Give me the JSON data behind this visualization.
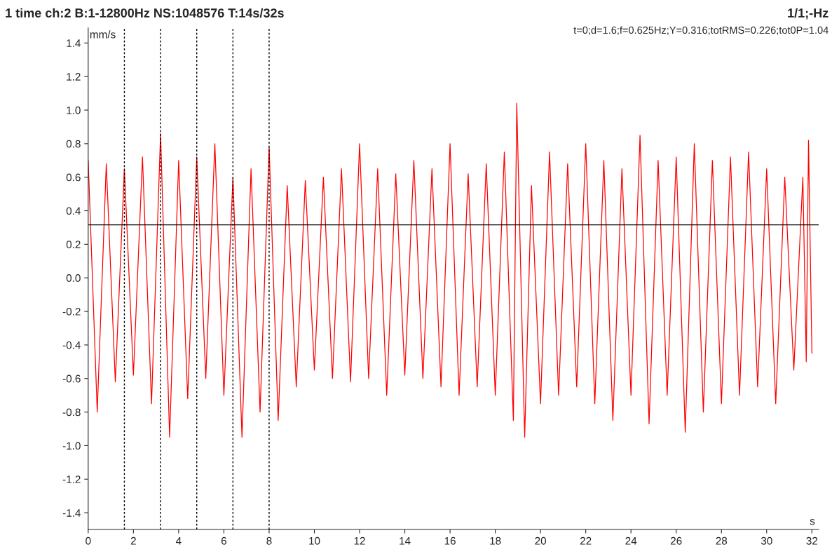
{
  "chart_data": {
    "type": "line",
    "title": "1 time ch:2 B:1-12800Hz NS:1048576 T:14s/32s",
    "subtitle": "1/1;-Hz",
    "annotations": [
      "t=0;d=1.6;f=0.625Hz;Y=0.316;totRMS=0.226;tot0P=1.04"
    ],
    "xlabel": "s",
    "ylabel": "mm/s",
    "x": [
      0.0,
      0.4,
      0.8,
      1.2,
      1.6,
      2.0,
      2.4,
      2.8,
      3.2,
      3.6,
      4.0,
      4.4,
      4.8,
      5.2,
      5.6,
      6.0,
      6.4,
      6.8,
      7.2,
      7.6,
      8.0,
      8.4,
      8.8,
      9.2,
      9.6,
      10.0,
      10.4,
      10.8,
      11.2,
      11.6,
      12.0,
      12.4,
      12.8,
      13.2,
      13.6,
      14.0,
      14.4,
      14.8,
      15.2,
      15.6,
      16.0,
      16.4,
      16.8,
      17.2,
      17.6,
      18.0,
      18.4,
      18.8,
      18.95,
      19.3,
      19.6,
      20.0,
      20.4,
      20.8,
      21.2,
      21.6,
      22.0,
      22.4,
      22.8,
      23.2,
      23.6,
      24.0,
      24.4,
      24.8,
      25.2,
      25.6,
      26.0,
      26.4,
      26.8,
      27.2,
      27.6,
      28.0,
      28.4,
      28.8,
      29.2,
      29.6,
      30.0,
      30.4,
      30.8,
      31.2,
      31.6,
      31.75,
      31.85,
      32.0
    ],
    "series": [
      {
        "color": "#ff0000",
        "values": [
          0.7,
          -0.8,
          0.68,
          -0.62,
          0.65,
          -0.58,
          0.72,
          -0.75,
          0.86,
          -0.95,
          0.7,
          -0.72,
          0.72,
          -0.6,
          0.8,
          -0.7,
          0.6,
          -0.95,
          0.65,
          -0.8,
          0.78,
          -0.85,
          0.55,
          -0.65,
          0.58,
          -0.55,
          0.6,
          -0.6,
          0.65,
          -0.62,
          0.8,
          -0.6,
          0.65,
          -0.7,
          0.62,
          -0.58,
          0.7,
          -0.6,
          0.65,
          -0.65,
          0.8,
          -0.7,
          0.62,
          -0.65,
          0.68,
          -0.7,
          0.75,
          -0.85,
          1.04,
          -0.95,
          0.55,
          -0.75,
          0.75,
          -0.7,
          0.68,
          -0.65,
          0.8,
          -0.75,
          0.7,
          -0.85,
          0.65,
          -0.7,
          0.85,
          -0.87,
          0.7,
          -0.7,
          0.72,
          -0.92,
          0.8,
          -0.8,
          0.7,
          -0.75,
          0.72,
          -0.7,
          0.75,
          -0.65,
          0.65,
          -0.75,
          0.6,
          -0.55,
          0.6,
          -0.5,
          0.82,
          -0.45
        ]
      }
    ],
    "xlim": [
      0,
      32.3
    ],
    "xticks": [
      0,
      2,
      4,
      6,
      8,
      10,
      12,
      14,
      16,
      18,
      20,
      22,
      24,
      26,
      28,
      30,
      32
    ],
    "ylim": [
      -1.5,
      1.49
    ],
    "yticks": [
      {
        "value": -1.4,
        "label": "-1.4"
      },
      {
        "value": -1.2,
        "label": "-1.2"
      },
      {
        "value": -1.0,
        "label": "-1.0"
      },
      {
        "value": -0.8,
        "label": "-0.8"
      },
      {
        "value": -0.6,
        "label": "-0.6"
      },
      {
        "value": -0.4,
        "label": "-0.4"
      },
      {
        "value": -0.2,
        "label": "-0.2"
      },
      {
        "value": 0,
        "label": "0.0"
      },
      {
        "value": 0.2,
        "label": "0.2"
      },
      {
        "value": 0.4,
        "label": "0.4"
      },
      {
        "value": 0.6,
        "label": "0.6"
      },
      {
        "value": 0.8,
        "label": "0.8"
      },
      {
        "value": 1.0,
        "label": "1.0"
      },
      {
        "value": 1.2,
        "label": "1.2"
      },
      {
        "value": 1.4,
        "label": "1.4"
      }
    ],
    "ref_lines": [
      {
        "axis": "y",
        "value": 0.316,
        "color": "#000000",
        "line_style": "solid"
      },
      {
        "axis": "x",
        "value": 1.6,
        "color": "#000000",
        "line_style": "dotted"
      },
      {
        "axis": "x",
        "value": 3.2,
        "color": "#000000",
        "line_style": "dotted"
      },
      {
        "axis": "x",
        "value": 4.8,
        "color": "#000000",
        "line_style": "dotted"
      },
      {
        "axis": "x",
        "value": 6.4,
        "color": "#000000",
        "line_style": "dotted"
      },
      {
        "axis": "x",
        "value": 8.0,
        "color": "#000000",
        "line_style": "dotted"
      }
    ],
    "grid": false,
    "marker": "none",
    "line_style": "solid"
  }
}
